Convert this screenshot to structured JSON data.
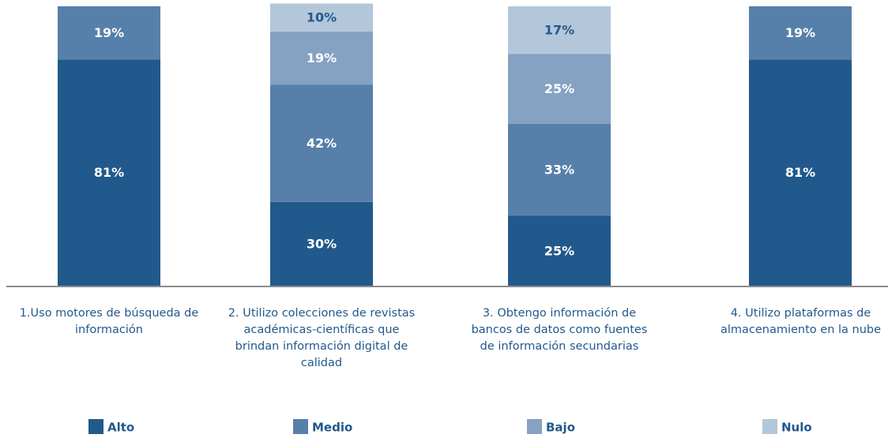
{
  "chart_data": {
    "type": "stacked_bar",
    "categories": [
      "1.Uso motores de búsqueda de información",
      "2. Utilizo colecciones de revistas académicas-científicas que brindan información digital de calidad",
      "3. Obtengo información de bancos de datos como fuentes de información secundarias",
      "4. Utilizo plataformas de almacenamiento en la nube"
    ],
    "series": [
      {
        "name": "Alto",
        "color": "#22598c",
        "values": [
          81,
          30,
          25,
          81
        ],
        "value_labels": [
          "81%",
          "30%",
          "25%",
          "81%"
        ]
      },
      {
        "name": "Medio",
        "color": "#5680aa",
        "values": [
          19,
          42,
          33,
          19
        ],
        "value_labels": [
          "19%",
          "42%",
          "33%",
          "19%"
        ]
      },
      {
        "name": "Bajo",
        "color": "#85a2c2",
        "values": [
          0,
          19,
          25,
          0
        ],
        "value_labels": [
          null,
          "19%",
          "25%",
          null
        ]
      },
      {
        "name": "Nulo",
        "color": "#b4c6da",
        "values": [
          0,
          10,
          17,
          0
        ],
        "value_labels": [
          null,
          "10%",
          "17%",
          null
        ]
      }
    ]
  }
}
